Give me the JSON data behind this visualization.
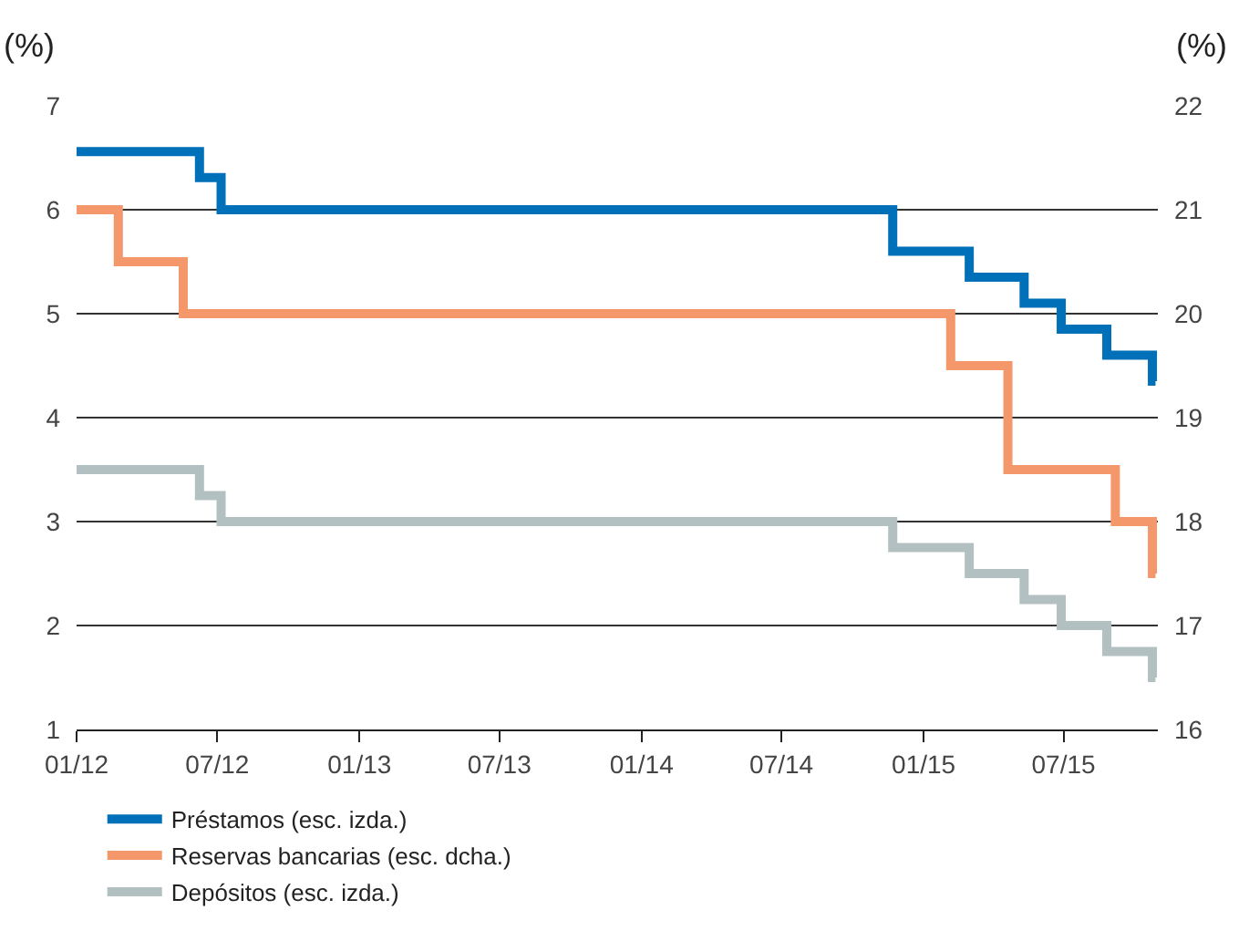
{
  "chart_data": {
    "type": "step",
    "ylabel": "(%)",
    "y2label": "(%)",
    "xlim": [
      "2012-01-01",
      "2015-10-31"
    ],
    "xticks": [
      {
        "value": "2012-01-01",
        "label": "01/12"
      },
      {
        "value": "2012-07-01",
        "label": "07/12"
      },
      {
        "value": "2013-01-01",
        "label": "01/13"
      },
      {
        "value": "2013-07-01",
        "label": "07/13"
      },
      {
        "value": "2014-01-01",
        "label": "01/14"
      },
      {
        "value": "2014-07-01",
        "label": "07/14"
      },
      {
        "value": "2015-01-01",
        "label": "01/15"
      },
      {
        "value": "2015-07-01",
        "label": "07/15"
      }
    ],
    "ylim": [
      1,
      7
    ],
    "yticks": [
      1,
      2,
      3,
      4,
      5,
      6,
      7
    ],
    "y2lim": [
      16,
      22
    ],
    "y2ticks": [
      16,
      17,
      18,
      19,
      20,
      21,
      22
    ],
    "grid": "y",
    "legend": "bottom",
    "series": [
      {
        "name": "Préstamos (esc. izda.)",
        "color": "#0070b8",
        "x": [
          "2012-01-01",
          "2012-06-08",
          "2012-07-06",
          "2014-11-22",
          "2015-03-01",
          "2015-05-11",
          "2015-06-28",
          "2015-08-26",
          "2015-10-24",
          "2015-10-28"
        ],
        "values": [
          6.56,
          6.31,
          6.0,
          5.6,
          5.35,
          5.1,
          4.85,
          4.6,
          4.35,
          4.35
        ]
      },
      {
        "name": "Reservas bancarias (esc. dcha.)",
        "color": "#f4976a",
        "axis": "y2",
        "x": [
          "2012-01-01",
          "2012-02-24",
          "2012-05-18",
          "2015-02-05",
          "2015-04-20",
          "2015-09-06",
          "2015-10-24",
          "2015-10-28"
        ],
        "values": [
          21,
          20.5,
          20,
          19.5,
          18.5,
          18,
          17.5,
          17.5
        ]
      },
      {
        "name": "Depósitos (esc. izda.)",
        "color": "#b3c0c2",
        "x": [
          "2012-01-01",
          "2012-06-08",
          "2012-07-06",
          "2014-11-22",
          "2015-03-01",
          "2015-05-11",
          "2015-06-28",
          "2015-08-26",
          "2015-10-24",
          "2015-10-28"
        ],
        "values": [
          3.5,
          3.25,
          3.0,
          2.75,
          2.5,
          2.25,
          2.0,
          1.75,
          1.5,
          1.5
        ]
      }
    ]
  }
}
